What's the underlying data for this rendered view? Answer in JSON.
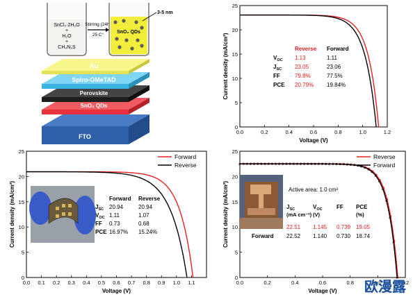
{
  "schematic": {
    "precursor_lines": [
      "SnCl₂·2H₂O",
      "+",
      "H₂O",
      "+",
      "CH₄N₂S"
    ],
    "arrow_top": "Stirring (24h)",
    "arrow_bottom": "25 C°",
    "product": "SnO₂ QDs",
    "size_label": "3-5 nm",
    "layers": [
      {
        "name": "Au",
        "color": "#f4f47a"
      },
      {
        "name": "Spiro-OMeTAD",
        "color": "#5ac8f0"
      },
      {
        "name": "Perovskite",
        "color": "#2a2a2a"
      },
      {
        "name": "SnO₂ QDs",
        "color": "#e8323c"
      },
      {
        "name": "FTO",
        "color": "#2f5fa8"
      }
    ]
  },
  "watermark": "欧漫露",
  "chart_data": [
    {
      "type": "line",
      "panel": "top-right",
      "xlabel": "Voltage (V)",
      "ylabel": "Current density (mA/cm²)",
      "xlim": [
        0.0,
        1.2
      ],
      "ylim": [
        0,
        25
      ],
      "xticks": [
        "0.0",
        "0.2",
        "0.4",
        "0.6",
        "0.8",
        "1.0",
        "1.2"
      ],
      "yticks": [
        "0",
        "5",
        "10",
        "15",
        "20",
        "25"
      ],
      "series": [
        {
          "name": "Reverse",
          "color": "#e8201e",
          "jsc": 23.05,
          "voc": 1.13,
          "knee": 0.86
        },
        {
          "name": "Forward",
          "color": "#000000",
          "jsc": 23.06,
          "voc": 1.11,
          "knee": 0.82
        }
      ],
      "table": {
        "headers": [
          "",
          "Reverse",
          "Forward"
        ],
        "rows": [
          [
            "V_OC",
            "1.13",
            "1.11"
          ],
          [
            "J_SC",
            "23.05",
            "23.06"
          ],
          [
            "FF",
            "79.8%",
            "77.5%"
          ],
          [
            "PCE",
            "20.79%",
            "19.84%"
          ]
        ]
      }
    },
    {
      "type": "line",
      "panel": "bottom-left",
      "xlabel": "Voltage (V)",
      "ylabel": "Current density (mA/cm²)",
      "xlim": [
        0.0,
        1.2
      ],
      "ylim": [
        0,
        25
      ],
      "xticks": [
        "0.0",
        "0.1",
        "0.2",
        "0.3",
        "0.4",
        "0.5",
        "0.6",
        "0.7",
        "0.8",
        "0.9",
        "1.0",
        "1.1"
      ],
      "yticks": [
        "0",
        "5",
        "10",
        "15",
        "20",
        "25"
      ],
      "legend": "top-right",
      "series": [
        {
          "name": "Forward",
          "color": "#e8201e",
          "jsc": 20.94,
          "voc": 1.11,
          "knee": 0.83
        },
        {
          "name": "Reverse",
          "color": "#000000",
          "jsc": 20.94,
          "voc": 1.07,
          "knee": 0.72
        }
      ],
      "table": {
        "headers": [
          "",
          "Forward",
          "Reverse"
        ],
        "rows": [
          [
            "J_SC",
            "20.94",
            "20.94"
          ],
          [
            "V_OC",
            "1.11",
            "1.07"
          ],
          [
            "FF",
            "0.73",
            "0.68"
          ],
          [
            "PCE",
            "16.97%",
            "15.24%"
          ]
        ]
      }
    },
    {
      "type": "line",
      "panel": "bottom-right",
      "xlabel": "Voltage (V)",
      "ylabel": "Current density (mA/cm²)",
      "xlim": [
        0.0,
        1.2
      ],
      "ylim": [
        0,
        25
      ],
      "xticks": [
        "0.0",
        "0.2",
        "0.4",
        "0.6",
        "0.8",
        "1.0",
        "1.2"
      ],
      "yticks": [
        "0",
        "5",
        "10",
        "15",
        "20",
        "25"
      ],
      "legend": "top-right",
      "annotation": "Active area: 1.0 cm²",
      "series": [
        {
          "name": "Reverse",
          "color": "#e8201e",
          "jsc": 22.51,
          "voc": 1.145,
          "knee": 0.93,
          "marker": "circle"
        },
        {
          "name": "Forward",
          "color": "#000000",
          "jsc": 22.52,
          "voc": 1.14,
          "knee": 0.92,
          "marker": "triangle"
        }
      ],
      "table": {
        "headers": [
          "",
          "J_SC",
          "V_OC",
          "FF",
          "PCE"
        ],
        "units": [
          "",
          "(mA cm⁻²)",
          "(V)",
          "",
          "(%)"
        ],
        "rows": [
          [
            "Reverse",
            "22.51",
            "1.145",
            "0.739",
            "19.05"
          ],
          [
            "Forward",
            "22.52",
            "1.140",
            "0.730",
            "18.74"
          ]
        ]
      }
    }
  ]
}
